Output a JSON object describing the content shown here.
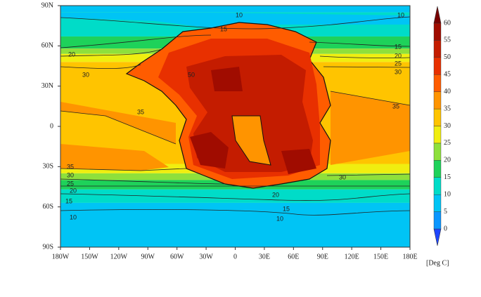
{
  "map": {
    "x_labels": [
      "180W",
      "150W",
      "120W",
      "90W",
      "60W",
      "30W",
      "0",
      "30E",
      "60E",
      "90E",
      "120E",
      "150E",
      "180E"
    ],
    "y_labels": [
      "90N",
      "60N",
      "30N",
      "0",
      "30S",
      "60S",
      "90S"
    ],
    "colorbar": {
      "ticks": [
        0,
        5,
        10,
        15,
        20,
        25,
        30,
        35,
        40,
        45,
        50,
        55,
        60
      ],
      "unit": "[Deg C]",
      "colors": [
        "#1e46ff",
        "#0a96ff",
        "#00c4f5",
        "#00dcc8",
        "#1ed25a",
        "#8ee03c",
        "#f0ee10",
        "#ffc400",
        "#ff9400",
        "#ff5c00",
        "#e83000",
        "#c41c00",
        "#a00c00",
        "#780000"
      ]
    },
    "contour_labels": [
      10,
      10,
      15,
      15,
      20,
      20,
      25,
      30,
      30,
      35,
      35,
      50,
      35,
      30,
      25,
      20,
      15,
      10,
      30,
      20,
      15,
      10
    ]
  }
}
